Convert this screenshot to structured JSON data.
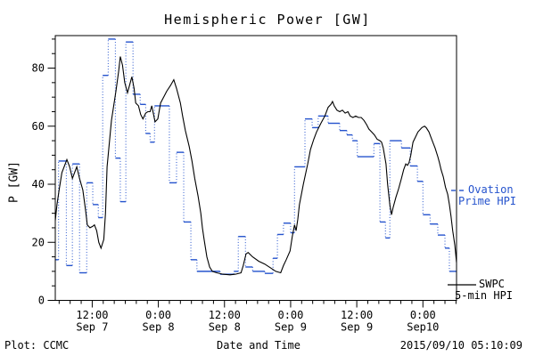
{
  "title": "Hemispheric Power [GW]",
  "footer": {
    "left": "Plot: CCMC",
    "center": "Date and Time",
    "right": "2015/09/10 05:10:09"
  },
  "y_axis": {
    "label": "P [GW]",
    "tick_values": [
      0,
      20,
      40,
      60,
      80
    ],
    "minor_step": 5,
    "max": 91
  },
  "x_axis": {
    "minor_step_hours": 2,
    "major_ticks": [
      {
        "t": 12,
        "time": "12:00",
        "date": "Sep 7"
      },
      {
        "t": 24,
        "time": "0:00",
        "date": "Sep 8"
      },
      {
        "t": 36,
        "time": "12:00",
        "date": "Sep 8"
      },
      {
        "t": 48,
        "time": "0:00",
        "date": "Sep 9"
      },
      {
        "t": 60,
        "time": "12:00",
        "date": "Sep 9"
      },
      {
        "t": 72,
        "time": "0:00",
        "date": "Sep10"
      }
    ]
  },
  "legend": {
    "ovation": {
      "line1": "Ovation",
      "line2": "Prime HPI",
      "color": "#2553cd"
    },
    "swpc": {
      "line1": "SWPC",
      "line2": "5-min HPI",
      "color": "#000000"
    }
  },
  "chart_data": {
    "type": "line",
    "title": "Hemispheric Power [GW]",
    "xlabel": "Date and Time",
    "ylabel": "P [GW]",
    "x_unit": "hours since 2015-09-07 00:00 UT",
    "xlim": [
      5.3,
      78.1
    ],
    "ylim": [
      0,
      91.2
    ],
    "grid": false,
    "legend_position": "right-outside",
    "series": [
      {
        "name": "Ovation Prime HPI",
        "style": "steps-dotted-connectors",
        "color": "#2553cd",
        "steps": [
          [
            5.3,
            14
          ],
          [
            5.9,
            48
          ],
          [
            7.3,
            12
          ],
          [
            8.4,
            47
          ],
          [
            9.7,
            9.5
          ],
          [
            11.0,
            40.5
          ],
          [
            12.1,
            33
          ],
          [
            13.1,
            28.5
          ],
          [
            13.9,
            77.5
          ],
          [
            14.9,
            90
          ],
          [
            16.2,
            49
          ],
          [
            17.1,
            34
          ],
          [
            18.1,
            89
          ],
          [
            19.4,
            71
          ],
          [
            20.7,
            67.5
          ],
          [
            21.7,
            57.5
          ],
          [
            22.5,
            54.5
          ],
          [
            23.3,
            67
          ],
          [
            26.0,
            40.5
          ],
          [
            27.3,
            51
          ],
          [
            28.6,
            27
          ],
          [
            29.9,
            14
          ],
          [
            31.0,
            10
          ],
          [
            35.2,
            9
          ],
          [
            37.7,
            10
          ],
          [
            38.5,
            22
          ],
          [
            39.8,
            11.5
          ],
          [
            41.1,
            10
          ],
          [
            43.3,
            9.3
          ],
          [
            44.8,
            14.5
          ],
          [
            45.6,
            22.7
          ],
          [
            46.7,
            26.6
          ],
          [
            48.0,
            23.3
          ],
          [
            48.7,
            46
          ],
          [
            50.6,
            62.5
          ],
          [
            51.9,
            59.5
          ],
          [
            53.0,
            63.5
          ],
          [
            54.8,
            61
          ],
          [
            56.9,
            58.5
          ],
          [
            58.2,
            57
          ],
          [
            59.2,
            55
          ],
          [
            60.1,
            49.5
          ],
          [
            63.1,
            54
          ],
          [
            64.2,
            27
          ],
          [
            65.2,
            21.5
          ],
          [
            66.0,
            55
          ],
          [
            68.1,
            52.5
          ],
          [
            69.7,
            46.3
          ],
          [
            71.0,
            41
          ],
          [
            72.0,
            29.5
          ],
          [
            73.3,
            26.3
          ],
          [
            74.7,
            22.5
          ],
          [
            76.0,
            18
          ],
          [
            76.8,
            10
          ]
        ]
      },
      {
        "name": "SWPC 5-min HPI",
        "style": "solid",
        "color": "#000000",
        "points": [
          [
            5.3,
            27.5
          ],
          [
            5.6,
            33
          ],
          [
            6.0,
            38
          ],
          [
            6.5,
            44
          ],
          [
            7.4,
            48.5
          ],
          [
            7.9,
            46
          ],
          [
            8.4,
            42
          ],
          [
            9.2,
            46
          ],
          [
            9.7,
            42
          ],
          [
            10.3,
            38
          ],
          [
            10.8,
            31
          ],
          [
            11.1,
            26
          ],
          [
            11.6,
            25
          ],
          [
            12.1,
            25.5
          ],
          [
            12.4,
            26
          ],
          [
            12.8,
            24
          ],
          [
            13.2,
            20
          ],
          [
            13.6,
            18
          ],
          [
            14.1,
            21
          ],
          [
            14.4,
            30
          ],
          [
            14.7,
            46
          ],
          [
            15.5,
            62
          ],
          [
            16.3,
            72
          ],
          [
            16.8,
            79
          ],
          [
            17.1,
            84
          ],
          [
            17.5,
            81
          ],
          [
            17.9,
            75
          ],
          [
            18.4,
            71.5
          ],
          [
            18.9,
            75
          ],
          [
            19.2,
            77
          ],
          [
            19.6,
            73
          ],
          [
            19.9,
            68
          ],
          [
            20.4,
            67
          ],
          [
            20.8,
            64
          ],
          [
            21.2,
            62.5
          ],
          [
            21.7,
            64.5
          ],
          [
            22.1,
            65
          ],
          [
            22.5,
            65
          ],
          [
            22.8,
            67
          ],
          [
            23.4,
            61.5
          ],
          [
            23.9,
            62.5
          ],
          [
            24.4,
            68
          ],
          [
            25.1,
            70.5
          ],
          [
            25.5,
            72
          ],
          [
            26.2,
            74
          ],
          [
            26.8,
            76
          ],
          [
            27.3,
            73
          ],
          [
            28.0,
            68
          ],
          [
            28.4,
            63.5
          ],
          [
            28.9,
            58.5
          ],
          [
            29.6,
            53
          ],
          [
            30.1,
            48
          ],
          [
            30.6,
            42
          ],
          [
            31.2,
            36
          ],
          [
            31.7,
            30
          ],
          [
            32.0,
            25
          ],
          [
            32.3,
            21
          ],
          [
            32.8,
            15
          ],
          [
            33.3,
            11.5
          ],
          [
            33.8,
            10
          ],
          [
            34.6,
            9.5
          ],
          [
            35.7,
            9
          ],
          [
            37.0,
            8.8
          ],
          [
            38.0,
            9
          ],
          [
            39.0,
            9.5
          ],
          [
            39.4,
            12
          ],
          [
            39.9,
            16
          ],
          [
            40.3,
            16.5
          ],
          [
            41.1,
            15
          ],
          [
            42.2,
            13.5
          ],
          [
            43.3,
            12.5
          ],
          [
            44.5,
            11
          ],
          [
            45.3,
            10
          ],
          [
            46.2,
            9.5
          ],
          [
            46.7,
            12
          ],
          [
            47.2,
            14
          ],
          [
            47.9,
            17
          ],
          [
            48.3,
            22
          ],
          [
            48.7,
            26
          ],
          [
            49.0,
            24
          ],
          [
            49.3,
            28
          ],
          [
            49.6,
            33
          ],
          [
            50.3,
            40
          ],
          [
            51.1,
            47
          ],
          [
            51.6,
            52
          ],
          [
            52.2,
            55.5
          ],
          [
            52.7,
            58
          ],
          [
            53.5,
            61
          ],
          [
            54.2,
            63.5
          ],
          [
            54.8,
            66.5
          ],
          [
            55.3,
            67.5
          ],
          [
            55.6,
            68.5
          ],
          [
            55.9,
            67
          ],
          [
            56.4,
            65.5
          ],
          [
            56.9,
            65
          ],
          [
            57.4,
            65.5
          ],
          [
            57.9,
            64.5
          ],
          [
            58.4,
            65
          ],
          [
            58.8,
            63.5
          ],
          [
            59.3,
            63
          ],
          [
            59.8,
            63.5
          ],
          [
            60.3,
            63
          ],
          [
            60.8,
            63
          ],
          [
            61.3,
            62
          ],
          [
            61.8,
            60.5
          ],
          [
            62.2,
            59
          ],
          [
            62.7,
            58
          ],
          [
            63.2,
            57
          ],
          [
            63.7,
            55.5
          ],
          [
            64.2,
            55
          ],
          [
            64.5,
            54.5
          ],
          [
            64.8,
            52.5
          ],
          [
            65.3,
            47
          ],
          [
            65.6,
            40
          ],
          [
            66.0,
            33
          ],
          [
            66.3,
            29.5
          ],
          [
            66.6,
            32
          ],
          [
            67.1,
            35.5
          ],
          [
            67.6,
            38.5
          ],
          [
            68.1,
            42
          ],
          [
            68.5,
            45
          ],
          [
            68.9,
            47
          ],
          [
            69.2,
            46.5
          ],
          [
            69.5,
            47.5
          ],
          [
            69.8,
            50
          ],
          [
            70.2,
            54.5
          ],
          [
            70.6,
            56
          ],
          [
            71.1,
            58
          ],
          [
            71.8,
            59.5
          ],
          [
            72.3,
            60
          ],
          [
            72.6,
            59.5
          ],
          [
            73.1,
            58
          ],
          [
            73.4,
            56.5
          ],
          [
            73.9,
            54
          ],
          [
            74.2,
            52.5
          ],
          [
            74.7,
            49.5
          ],
          [
            75.0,
            47.5
          ],
          [
            75.3,
            45
          ],
          [
            75.7,
            42.5
          ],
          [
            76.1,
            39
          ],
          [
            76.5,
            36.5
          ],
          [
            76.8,
            33
          ],
          [
            77.1,
            29
          ],
          [
            77.4,
            24
          ],
          [
            77.8,
            19
          ],
          [
            78.1,
            13
          ]
        ]
      }
    ]
  }
}
